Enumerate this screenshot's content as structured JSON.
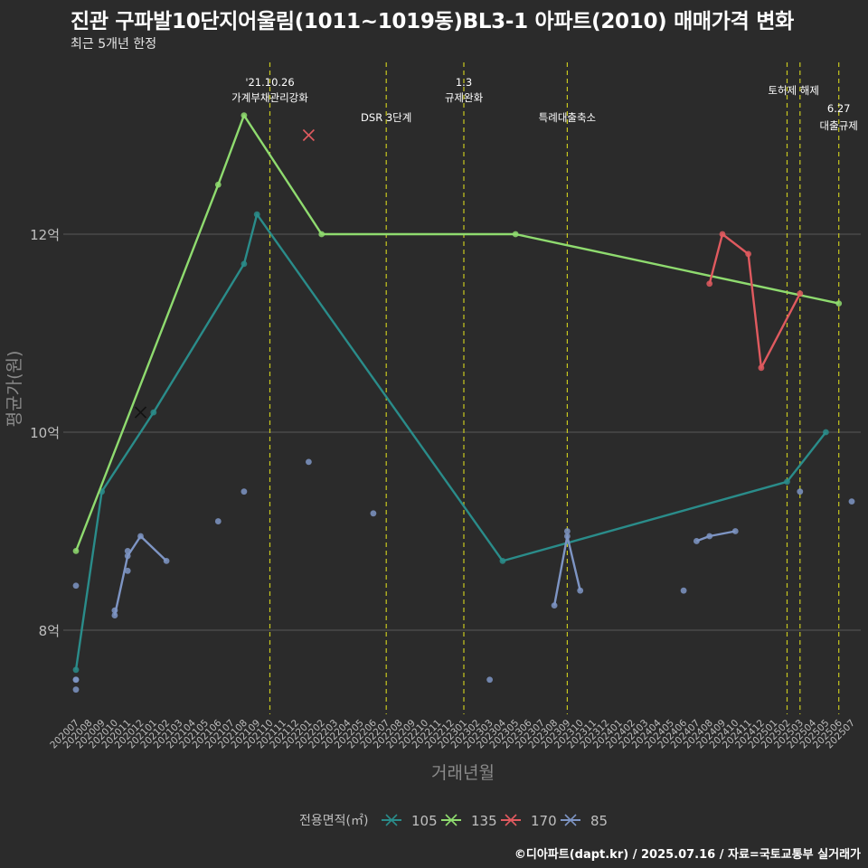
{
  "title": "진관 구파발10단지어울림(1011~1019동)BL3-1 아파트(2010) 매매가격 변화",
  "subtitle": "최근 5개년 한정",
  "caption": "©디아파트(dapt.kr) / 2025.07.16 / 자료=국토교통부 실거래가",
  "colors": {
    "background": "#2b2b2b",
    "grid": "#5a5a5a",
    "vline": "#c8c81e",
    "axis_text": "#bfbfbf",
    "series": {
      "105": "#2a8c8a",
      "135": "#8fdb6f",
      "170": "#e05a5f",
      "85": "#7e95c4"
    }
  },
  "chart_data": {
    "type": "line",
    "xlabel": "거래년월",
    "ylabel": "평균가(원)",
    "categories": [
      "202007",
      "202008",
      "202009",
      "202010",
      "202011",
      "202012",
      "202101",
      "202102",
      "202103",
      "202104",
      "202105",
      "202106",
      "202107",
      "202108",
      "202109",
      "202110",
      "202111",
      "202112",
      "202201",
      "202202",
      "202203",
      "202204",
      "202205",
      "202206",
      "202207",
      "202208",
      "202209",
      "202210",
      "202211",
      "202212",
      "202301",
      "202302",
      "202303",
      "202304",
      "202305",
      "202306",
      "202307",
      "202308",
      "202309",
      "202310",
      "202311",
      "202312",
      "202401",
      "202402",
      "202403",
      "202404",
      "202405",
      "202406",
      "202407",
      "202408",
      "202409",
      "202410",
      "202411",
      "202412",
      "202501",
      "202502",
      "202503",
      "202504",
      "202505",
      "202506",
      "202507"
    ],
    "yticks": [
      {
        "value": 8,
        "label": "8억"
      },
      {
        "value": 10,
        "label": "10억"
      },
      {
        "value": 12,
        "label": "12억"
      }
    ],
    "ylim": [
      7.15,
      13.8
    ],
    "legend_title": "전용면적(㎡)",
    "legend_position": "bottom",
    "series": [
      {
        "name": "105",
        "line": [
          [
            "202007",
            7.6
          ],
          [
            "202009",
            9.4
          ],
          [
            "202101",
            10.2
          ],
          [
            "202108",
            11.7
          ],
          [
            "202109",
            12.2
          ],
          [
            "202304",
            8.7
          ],
          [
            "202502",
            9.5
          ],
          [
            "202505",
            10.0
          ]
        ],
        "points": [
          [
            "202007",
            7.6
          ],
          [
            "202009",
            9.4
          ],
          [
            "202101",
            10.2
          ],
          [
            "202108",
            11.7
          ],
          [
            "202109",
            12.2
          ],
          [
            "202304",
            8.7
          ],
          [
            "202502",
            9.5
          ],
          [
            "202505",
            10.0
          ]
        ],
        "marks": [
          [
            "202012",
            10.2
          ]
        ]
      },
      {
        "name": "135",
        "line": [
          [
            "202007",
            8.8
          ],
          [
            "202106",
            12.5
          ],
          [
            "202108",
            13.2
          ],
          [
            "202202",
            12.0
          ],
          [
            "202305",
            12.0
          ],
          [
            "202506",
            11.3
          ]
        ],
        "points": [
          [
            "202007",
            8.8
          ],
          [
            "202106",
            12.5
          ],
          [
            "202108",
            13.2
          ],
          [
            "202202",
            12.0
          ],
          [
            "202305",
            12.0
          ],
          [
            "202506",
            11.3
          ]
        ],
        "marks": []
      },
      {
        "name": "170",
        "line": [
          [
            "202408",
            11.5
          ],
          [
            "202409",
            12.0
          ],
          [
            "202411",
            11.8
          ],
          [
            "202412",
            10.65
          ],
          [
            "202503",
            11.4
          ]
        ],
        "points": [
          [
            "202408",
            11.5
          ],
          [
            "202409",
            12.0
          ],
          [
            "202411",
            11.8
          ],
          [
            "202412",
            10.65
          ],
          [
            "202503",
            11.4
          ]
        ],
        "marks": [
          [
            "202201",
            13.0
          ]
        ]
      },
      {
        "name": "85",
        "segments": [
          [
            [
              "202010",
              8.15
            ],
            [
              "202011",
              8.75
            ],
            [
              "202012",
              8.95
            ],
            [
              "202102",
              8.7
            ]
          ],
          [
            [
              "202308",
              8.25
            ],
            [
              "202309",
              8.95
            ],
            [
              "202310",
              8.4
            ]
          ],
          [
            [
              "202407",
              8.9
            ],
            [
              "202408",
              8.95
            ],
            [
              "202410",
              9.0
            ]
          ]
        ],
        "points": [
          [
            "202007",
            8.45
          ],
          [
            "202007",
            7.5
          ],
          [
            "202007",
            7.5
          ],
          [
            "202007",
            7.4
          ],
          [
            "202010",
            8.15
          ],
          [
            "202010",
            8.2
          ],
          [
            "202011",
            8.6
          ],
          [
            "202011",
            8.75
          ],
          [
            "202011",
            8.8
          ],
          [
            "202012",
            8.95
          ],
          [
            "202102",
            8.7
          ],
          [
            "202106",
            9.1
          ],
          [
            "202108",
            9.4
          ],
          [
            "202201",
            9.7
          ],
          [
            "202206",
            9.18
          ],
          [
            "202303",
            7.5
          ],
          [
            "202308",
            8.25
          ],
          [
            "202309",
            8.95
          ],
          [
            "202309",
            9.0
          ],
          [
            "202310",
            8.4
          ],
          [
            "202406",
            8.4
          ],
          [
            "202407",
            8.9
          ],
          [
            "202408",
            8.95
          ],
          [
            "202410",
            9.0
          ],
          [
            "202503",
            9.4
          ],
          [
            "202507",
            9.3
          ]
        ],
        "marks": []
      }
    ],
    "annotations": [
      {
        "x": "202110",
        "lines": [
          "'21.10.26",
          "가계부채관리강화"
        ],
        "row": 1
      },
      {
        "x": "202207",
        "lines": [
          "DSR 3단계"
        ],
        "row": 2
      },
      {
        "x": "202301",
        "lines": [
          "1.3",
          "규제완화"
        ],
        "row": 1
      },
      {
        "x": "202309",
        "lines": [
          "특례대출축소"
        ],
        "row": 2
      },
      {
        "x": "202502",
        "lines": [
          "토허제 해제"
        ],
        "row": 3,
        "anchor": "202503"
      },
      {
        "x": "202503",
        "lines": [],
        "row": 0
      },
      {
        "x": "202506",
        "lines": [
          "6.27",
          "대출규제"
        ],
        "row": 4
      }
    ]
  }
}
